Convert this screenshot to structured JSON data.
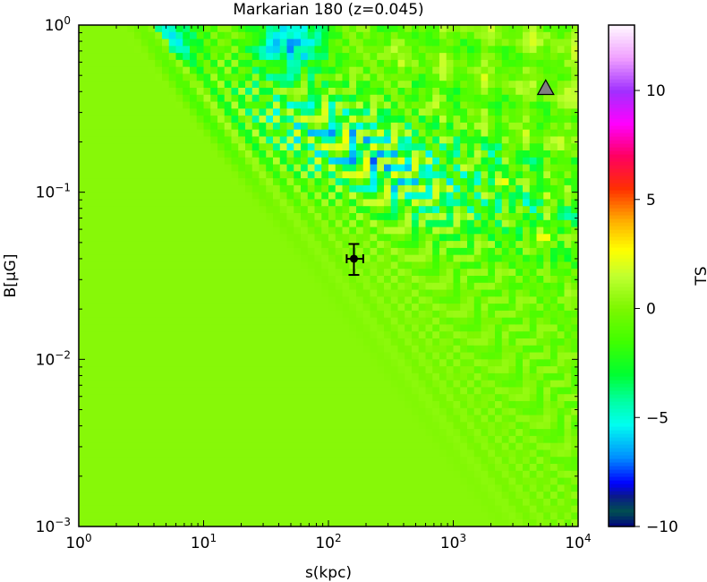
{
  "chart_data": {
    "type": "heatmap",
    "title": "Markarian 180 (z=0.045)",
    "xlabel": "s(kpc)",
    "ylabel": "B[μG]",
    "x_scale": "log",
    "y_scale": "log",
    "xlim": [
      1,
      10000
    ],
    "ylim": [
      0.001,
      1
    ],
    "x_ticks": [
      {
        "value": 1,
        "base": "10",
        "exp": "0"
      },
      {
        "value": 10,
        "base": "10",
        "exp": "1"
      },
      {
        "value": 100,
        "base": "10",
        "exp": "2"
      },
      {
        "value": 1000,
        "base": "10",
        "exp": "3"
      },
      {
        "value": 10000,
        "base": "10",
        "exp": "4"
      }
    ],
    "y_ticks": [
      {
        "value": 0.001,
        "base": "10",
        "exp": "−3"
      },
      {
        "value": 0.01,
        "base": "10",
        "exp": "−2"
      },
      {
        "value": 0.1,
        "base": "10",
        "exp": "−1"
      },
      {
        "value": 1,
        "base": "10",
        "exp": "0"
      }
    ],
    "colorbar": {
      "label": "TS",
      "range": [
        -10,
        13
      ],
      "ticks": [
        {
          "value": 10,
          "label": "10"
        },
        {
          "value": 5,
          "label": "5"
        },
        {
          "value": 0,
          "label": "0"
        },
        {
          "value": -5,
          "label": "−5"
        },
        {
          "value": -10,
          "label": "−10"
        }
      ],
      "colormap": "gist_ncar",
      "stops": [
        {
          "v": -10,
          "color": "#000080"
        },
        {
          "v": -9.3,
          "color": "#00504f"
        },
        {
          "v": -8.6,
          "color": "#0a1a8a"
        },
        {
          "v": -8.0,
          "color": "#0000ff"
        },
        {
          "v": -6.8,
          "color": "#0090ff"
        },
        {
          "v": -5.3,
          "color": "#00fff0"
        },
        {
          "v": -4.2,
          "color": "#00ffa0"
        },
        {
          "v": -3.0,
          "color": "#00ff30"
        },
        {
          "v": -1.5,
          "color": "#40ff00"
        },
        {
          "v": 0.0,
          "color": "#7cf700"
        },
        {
          "v": 1.5,
          "color": "#c0ff30"
        },
        {
          "v": 2.7,
          "color": "#ffff00"
        },
        {
          "v": 4.0,
          "color": "#ffb000"
        },
        {
          "v": 5.5,
          "color": "#ff3000"
        },
        {
          "v": 7.0,
          "color": "#ff0060"
        },
        {
          "v": 8.5,
          "color": "#ff00ff"
        },
        {
          "v": 10.0,
          "color": "#a030ff"
        },
        {
          "v": 11.5,
          "color": "#f0a0ff"
        },
        {
          "v": 13.0,
          "color": "#fff8ff"
        }
      ]
    },
    "markers": [
      {
        "kind": "errorbar-point",
        "x": 160,
        "y": 0.04,
        "xerr": [
          140,
          190
        ],
        "yerr": [
          0.032,
          0.049
        ],
        "color": "#000000"
      },
      {
        "kind": "triangle",
        "x": 5500,
        "y": 0.42,
        "color": "#808080"
      }
    ]
  }
}
